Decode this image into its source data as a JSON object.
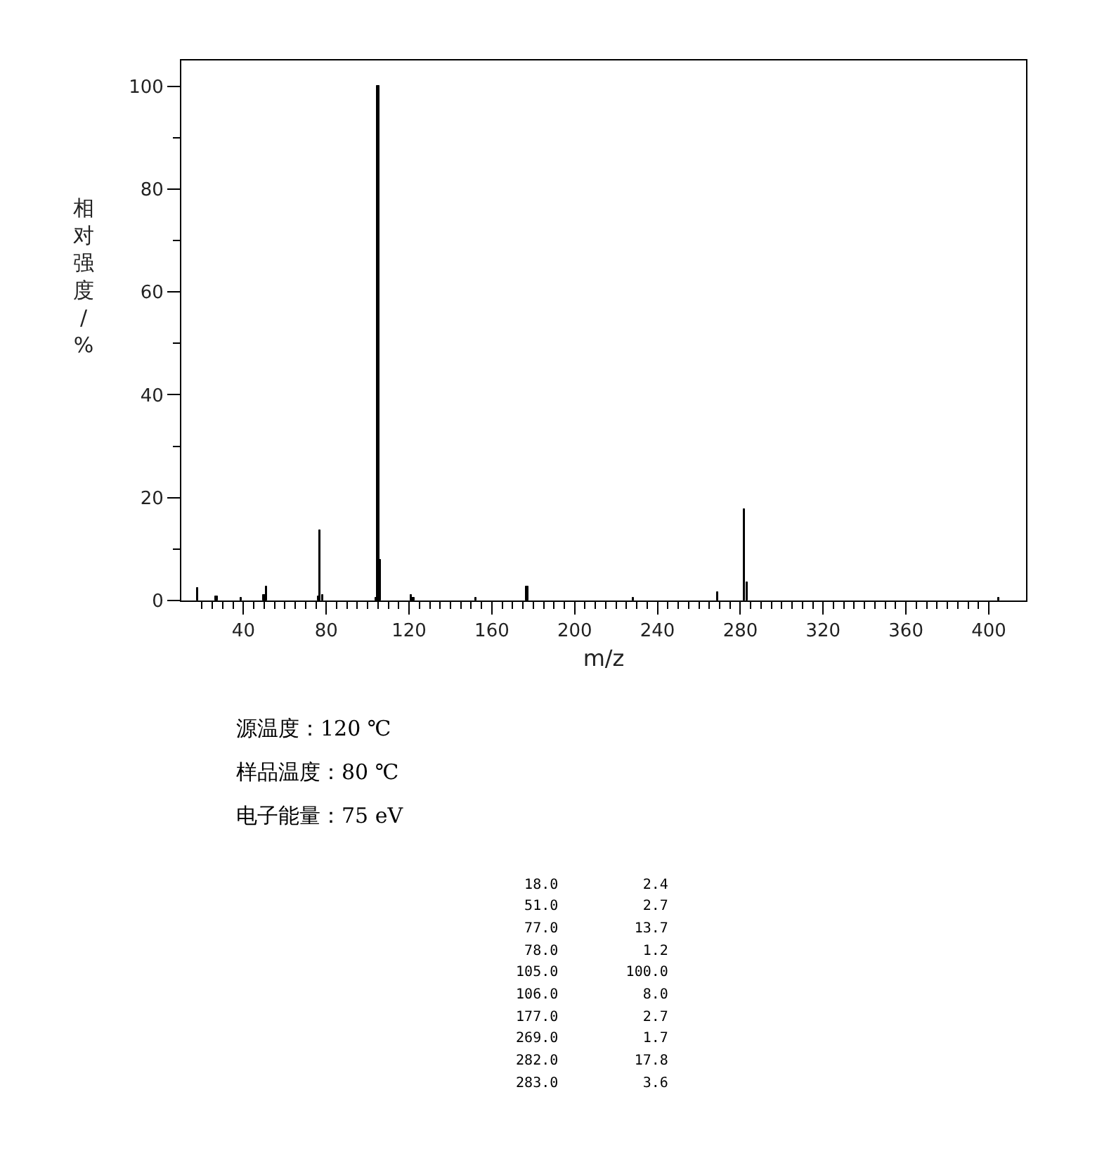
{
  "chart_data": {
    "type": "bar",
    "xlabel": "m/z",
    "ylabel": "相对强度/%",
    "x": [
      18,
      27,
      39,
      50,
      51,
      76,
      77,
      78,
      104,
      105,
      106,
      121,
      122,
      152,
      177,
      228,
      269,
      282,
      283,
      405
    ],
    "values": [
      2.4,
      0.8,
      0.5,
      1.0,
      2.7,
      0.8,
      13.7,
      1.2,
      0.5,
      100.0,
      8.0,
      1.0,
      0.6,
      0.5,
      2.7,
      0.5,
      1.7,
      17.8,
      3.6,
      0.5
    ],
    "color": "#000000",
    "xlim": [
      10,
      418
    ],
    "ylim": [
      0,
      105
    ],
    "xticks": [
      {
        "value": 20,
        "label": null
      },
      {
        "value": 25,
        "label": null
      },
      {
        "value": 30,
        "label": null
      },
      {
        "value": 35,
        "label": null
      },
      40,
      {
        "value": 45,
        "label": null
      },
      {
        "value": 50,
        "label": null
      },
      {
        "value": 55,
        "label": null
      },
      {
        "value": 60,
        "label": null
      },
      {
        "value": 65,
        "label": null
      },
      {
        "value": 70,
        "label": null
      },
      {
        "value": 75,
        "label": null
      },
      80,
      {
        "value": 85,
        "label": null
      },
      {
        "value": 90,
        "label": null
      },
      {
        "value": 95,
        "label": null
      },
      {
        "value": 100,
        "label": null
      },
      {
        "value": 105,
        "label": null
      },
      {
        "value": 110,
        "label": null
      },
      {
        "value": 115,
        "label": null
      },
      120,
      {
        "value": 125,
        "label": null
      },
      {
        "value": 130,
        "label": null
      },
      {
        "value": 135,
        "label": null
      },
      {
        "value": 140,
        "label": null
      },
      {
        "value": 145,
        "label": null
      },
      {
        "value": 150,
        "label": null
      },
      {
        "value": 155,
        "label": null
      },
      160,
      {
        "value": 165,
        "label": null
      },
      {
        "value": 170,
        "label": null
      },
      {
        "value": 175,
        "label": null
      },
      {
        "value": 180,
        "label": null
      },
      {
        "value": 185,
        "label": null
      },
      {
        "value": 190,
        "label": null
      },
      {
        "value": 195,
        "label": null
      },
      200,
      {
        "value": 205,
        "label": null
      },
      {
        "value": 210,
        "label": null
      },
      {
        "value": 215,
        "label": null
      },
      {
        "value": 220,
        "label": null
      },
      {
        "value": 225,
        "label": null
      },
      {
        "value": 230,
        "label": null
      },
      {
        "value": 235,
        "label": null
      },
      240,
      {
        "value": 245,
        "label": null
      },
      {
        "value": 250,
        "label": null
      },
      {
        "value": 255,
        "label": null
      },
      {
        "value": 260,
        "label": null
      },
      {
        "value": 265,
        "label": null
      },
      {
        "value": 270,
        "label": null
      },
      {
        "value": 275,
        "label": null
      },
      280,
      {
        "value": 285,
        "label": null
      },
      {
        "value": 290,
        "label": null
      },
      {
        "value": 295,
        "label": null
      },
      {
        "value": 300,
        "label": null
      },
      {
        "value": 305,
        "label": null
      },
      {
        "value": 310,
        "label": null
      },
      {
        "value": 315,
        "label": null
      },
      320,
      {
        "value": 325,
        "label": null
      },
      {
        "value": 330,
        "label": null
      },
      {
        "value": 335,
        "label": null
      },
      {
        "value": 340,
        "label": null
      },
      {
        "value": 345,
        "label": null
      },
      {
        "value": 350,
        "label": null
      },
      {
        "value": 355,
        "label": null
      },
      360,
      {
        "value": 365,
        "label": null
      },
      {
        "value": 370,
        "label": null
      },
      {
        "value": 375,
        "label": null
      },
      {
        "value": 380,
        "label": null
      },
      {
        "value": 385,
        "label": null
      },
      {
        "value": 390,
        "label": null
      },
      {
        "value": 395,
        "label": null
      },
      400
    ],
    "yticks": [
      0,
      {
        "value": 10,
        "label": null
      },
      20,
      {
        "value": 30,
        "label": null
      },
      40,
      {
        "value": 50,
        "label": null
      },
      60,
      {
        "value": 70,
        "label": null
      },
      80,
      {
        "value": 90,
        "label": null
      },
      100
    ],
    "annotations": [
      "源温度：120 ℃",
      "样品温度：80 ℃",
      "电子能量：75 eV",
      "18.0 2.4",
      "51.0 2.7",
      "77.0 13.7",
      "78.0 1.2",
      "105.0 100.0",
      "106.0 8.0",
      "177.0 2.7",
      "269.0 1.7",
      "282.0 17.8",
      "283.0 3.6"
    ]
  }
}
